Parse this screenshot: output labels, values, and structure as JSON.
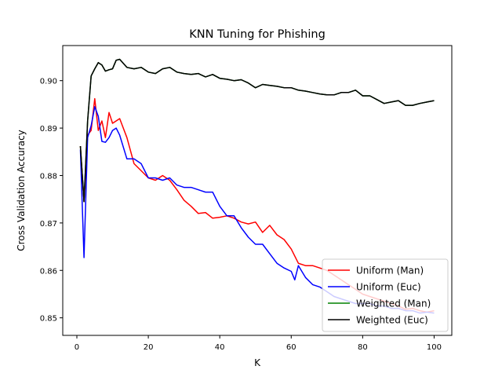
{
  "chart_data": {
    "type": "line",
    "title": "KNN Tuning for Phishing",
    "xlabel": "K",
    "ylabel": "Cross Validation Accuracy",
    "xlim": [
      -3.95,
      104.95
    ],
    "ylim": [
      0.8463,
      0.9074
    ],
    "xticks": [
      0,
      20,
      40,
      60,
      80,
      100
    ],
    "yticks": [
      0.85,
      0.86,
      0.87,
      0.88,
      0.89,
      0.9
    ],
    "ytick_labels": [
      "0.85",
      "0.86",
      "0.87",
      "0.88",
      "0.89",
      "0.90"
    ],
    "grid": false,
    "legend_position": "lower-right",
    "series": [
      {
        "name": "Uniform (Man)",
        "color": "#ff0000",
        "x": [
          1,
          2,
          3,
          4,
          5,
          6,
          7,
          8,
          9,
          10,
          12,
          14,
          16,
          18,
          20,
          22,
          24,
          26,
          28,
          30,
          32,
          34,
          36,
          38,
          40,
          42,
          44,
          46,
          48,
          50,
          52,
          54,
          56,
          58,
          60,
          62,
          64,
          66,
          68,
          70,
          72,
          74,
          76,
          78,
          80,
          82,
          84,
          86,
          88,
          90,
          92,
          94,
          96,
          98,
          100
        ],
        "y": [
          0.8862,
          0.8745,
          0.8885,
          0.8895,
          0.8962,
          0.8895,
          0.8915,
          0.888,
          0.8933,
          0.891,
          0.892,
          0.888,
          0.8825,
          0.881,
          0.8795,
          0.879,
          0.88,
          0.879,
          0.877,
          0.8748,
          0.8735,
          0.872,
          0.8722,
          0.871,
          0.8712,
          0.8715,
          0.871,
          0.8702,
          0.8698,
          0.8702,
          0.868,
          0.8695,
          0.8675,
          0.8665,
          0.8645,
          0.8615,
          0.861,
          0.861,
          0.8605,
          0.86,
          0.859,
          0.858,
          0.857,
          0.856,
          0.855,
          0.8545,
          0.854,
          0.8535,
          0.853,
          0.8525,
          0.8518,
          0.852,
          0.8515,
          0.8512,
          0.8515
        ]
      },
      {
        "name": "Uniform (Euc)",
        "color": "#0000ff",
        "x": [
          1,
          2,
          3,
          4,
          5,
          6,
          7,
          8,
          9,
          10,
          11,
          12,
          14,
          16,
          18,
          20,
          22,
          24,
          26,
          28,
          30,
          32,
          34,
          36,
          38,
          40,
          42,
          44,
          46,
          48,
          50,
          52,
          54,
          56,
          58,
          60,
          61,
          62,
          64,
          66,
          68,
          70,
          72,
          74,
          76,
          78,
          80,
          82,
          84,
          86,
          88,
          90,
          92,
          94,
          96,
          98,
          100
        ],
        "y": [
          0.8855,
          0.8627,
          0.888,
          0.8905,
          0.8945,
          0.8925,
          0.8872,
          0.887,
          0.888,
          0.8895,
          0.89,
          0.8885,
          0.8835,
          0.8835,
          0.8825,
          0.8795,
          0.8795,
          0.879,
          0.8795,
          0.878,
          0.8775,
          0.8775,
          0.877,
          0.8765,
          0.8765,
          0.8735,
          0.8715,
          0.8715,
          0.869,
          0.867,
          0.8655,
          0.8655,
          0.8635,
          0.8615,
          0.8605,
          0.8598,
          0.858,
          0.861,
          0.8585,
          0.857,
          0.8565,
          0.8555,
          0.8545,
          0.854,
          0.8535,
          0.853,
          0.853,
          0.853,
          0.8525,
          0.8525,
          0.852,
          0.852,
          0.8515,
          0.8515,
          0.851,
          0.8512,
          0.851
        ]
      },
      {
        "name": "Weighted (Man)",
        "color": "#008000",
        "x": [
          1,
          2,
          3,
          4,
          5,
          6,
          7,
          8,
          9,
          10,
          11,
          12,
          14,
          16,
          18,
          20,
          22,
          24,
          26,
          28,
          30,
          32,
          34,
          36,
          38,
          40,
          42,
          44,
          46,
          48,
          50,
          52,
          54,
          56,
          58,
          60,
          62,
          64,
          66,
          68,
          70,
          72,
          74,
          76,
          78,
          80,
          82,
          84,
          86,
          88,
          90,
          92,
          94,
          96,
          98,
          100
        ],
        "y": [
          0.8862,
          0.8745,
          0.8915,
          0.901,
          0.9025,
          0.9038,
          0.9033,
          0.902,
          0.9023,
          0.9025,
          0.9043,
          0.9045,
          0.9028,
          0.9025,
          0.9028,
          0.9018,
          0.9015,
          0.9025,
          0.9028,
          0.9018,
          0.9015,
          0.9013,
          0.9015,
          0.9008,
          0.9013,
          0.9005,
          0.9003,
          0.9,
          0.9002,
          0.8995,
          0.8985,
          0.8992,
          0.899,
          0.8988,
          0.8985,
          0.8985,
          0.898,
          0.8978,
          0.8975,
          0.8972,
          0.897,
          0.897,
          0.8975,
          0.8975,
          0.898,
          0.8968,
          0.8968,
          0.896,
          0.8952,
          0.8955,
          0.8958,
          0.8948,
          0.8948,
          0.8952,
          0.8955,
          0.8958
        ]
      },
      {
        "name": "Weighted (Euc)",
        "color": "#000000",
        "x": [
          1,
          2,
          3,
          4,
          5,
          6,
          7,
          8,
          9,
          10,
          11,
          12,
          14,
          16,
          18,
          20,
          22,
          24,
          26,
          28,
          30,
          32,
          34,
          36,
          38,
          40,
          42,
          44,
          46,
          48,
          50,
          52,
          54,
          56,
          58,
          60,
          62,
          64,
          66,
          68,
          70,
          72,
          74,
          76,
          78,
          80,
          82,
          84,
          86,
          88,
          90,
          92,
          94,
          96,
          98,
          100
        ],
        "y": [
          0.8862,
          0.8745,
          0.8915,
          0.901,
          0.9025,
          0.9038,
          0.9033,
          0.902,
          0.9023,
          0.9025,
          0.9043,
          0.9045,
          0.9028,
          0.9025,
          0.9028,
          0.9018,
          0.9015,
          0.9025,
          0.9028,
          0.9018,
          0.9015,
          0.9013,
          0.9015,
          0.9008,
          0.9013,
          0.9005,
          0.9003,
          0.9,
          0.9002,
          0.8995,
          0.8985,
          0.8992,
          0.899,
          0.8988,
          0.8985,
          0.8985,
          0.898,
          0.8978,
          0.8975,
          0.8972,
          0.897,
          0.897,
          0.8975,
          0.8975,
          0.898,
          0.8968,
          0.8968,
          0.896,
          0.8952,
          0.8955,
          0.8958,
          0.8948,
          0.8948,
          0.8952,
          0.8955,
          0.8958
        ]
      }
    ]
  }
}
